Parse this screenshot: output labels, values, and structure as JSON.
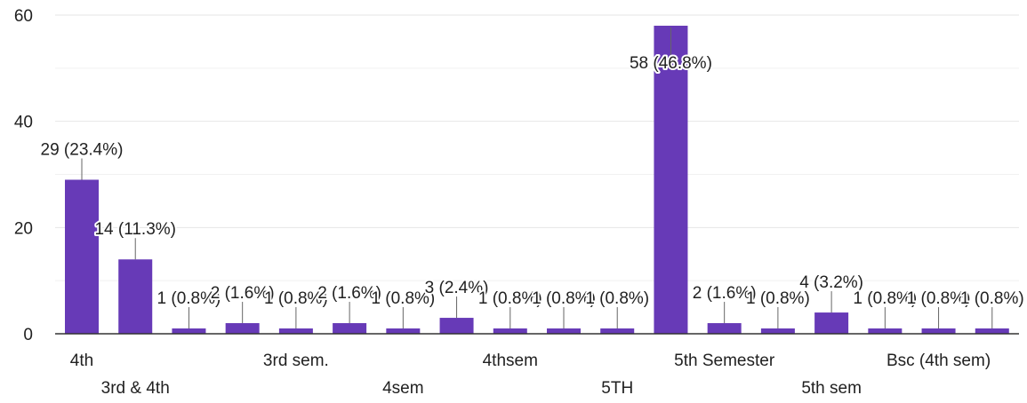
{
  "chart_data": {
    "type": "bar",
    "title": "",
    "xlabel": "",
    "ylabel": "",
    "ylim": [
      0,
      60
    ],
    "y_ticks": [
      0,
      20,
      40,
      60
    ],
    "grid": true,
    "legend": "none",
    "categories": [
      "4th",
      "3rd & 4th",
      "",
      "",
      "3rd sem.",
      "",
      "4sem",
      "",
      "4thsem",
      "",
      "5TH",
      "",
      "5th Semester",
      "",
      "5th sem",
      "",
      "Bsc (4th sem)",
      ""
    ],
    "values": [
      29,
      14,
      1,
      2,
      1,
      2,
      1,
      3,
      1,
      1,
      1,
      58,
      2,
      1,
      4,
      1,
      1,
      1
    ],
    "data_labels": [
      "29 (23.4%)",
      "14 (11.3%)",
      "1 (0.8%)",
      "2 (1.6%)",
      "1 (0.8%)",
      "2 (1.6%)",
      "1 (0.8%)",
      "3 (2.4%)",
      "1 (0.8%)",
      "1 (0.8%)",
      "1 (0.8%)",
      "58 (46.8%)",
      "2 (1.6%)",
      "1 (0.8%)",
      "4 (3.2%)",
      "1 (0.8%)",
      "1 (0.8%)",
      "1 (0.8%)"
    ],
    "colors": {
      "bar": "#673ab7",
      "grid": "#e6e6e6",
      "axis": "#333333",
      "text": "#212121",
      "leader": "#666666"
    }
  }
}
